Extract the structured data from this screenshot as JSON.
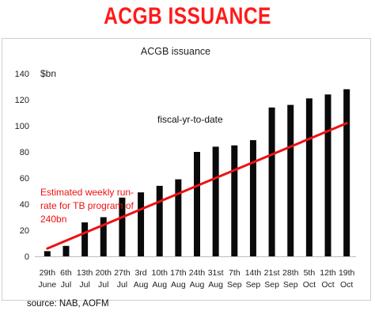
{
  "headline": "ACGB ISSUANCE",
  "source": "source: NAB, AOFM",
  "colors": {
    "headline": "#ff1a1a",
    "bar": "#0a0a0a",
    "trend": "#ee1111",
    "annotation": "#ee1111"
  },
  "chart_data": {
    "type": "bar",
    "title": "ACGB issuance",
    "ylabel": "$bn",
    "ylim": [
      0,
      140
    ],
    "yticks": [
      0,
      20,
      40,
      60,
      80,
      100,
      120,
      140
    ],
    "grid": false,
    "categories": [
      [
        "29th",
        "June"
      ],
      [
        "6th",
        "Jul"
      ],
      [
        "13th",
        "Jul"
      ],
      [
        "20th",
        "Jul"
      ],
      [
        "27th",
        "Jul"
      ],
      [
        "3rd",
        "Aug"
      ],
      [
        "10th",
        "Aug"
      ],
      [
        "17th",
        "Aug"
      ],
      [
        "24th",
        "Aug"
      ],
      [
        "31st",
        "Aug"
      ],
      [
        "7th",
        "Sep"
      ],
      [
        "14th",
        "Sep"
      ],
      [
        "21st",
        "Sep"
      ],
      [
        "28th",
        "Sep"
      ],
      [
        "5th",
        "Oct"
      ],
      [
        "12th",
        "Oct"
      ],
      [
        "19th",
        "Oct"
      ]
    ],
    "series": [
      {
        "name": "fiscal-yr-to-date",
        "values": [
          4,
          8,
          26,
          30,
          45,
          49,
          54,
          59,
          80,
          84,
          85,
          89,
          114,
          116,
          121,
          124,
          128
        ]
      }
    ],
    "trend_line": {
      "x": [
        "29th June",
        "19th Oct"
      ],
      "y": [
        6,
        102
      ]
    },
    "annotations": [
      {
        "label": "fiscal-yr-to-date"
      },
      {
        "label": "Estimated weekly run-rate for TB program of 240bn",
        "lines": [
          "Estimated weekly run-",
          "rate for TB program of",
          "240bn"
        ]
      }
    ]
  }
}
